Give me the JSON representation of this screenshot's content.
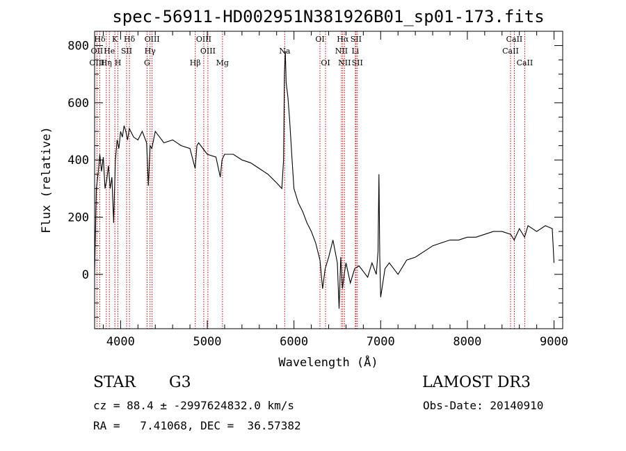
{
  "chart_data": {
    "type": "line",
    "title": "spec-56911-HD002951N381926B01_sp01-173.fits",
    "xlabel": "Wavelength (Å)",
    "ylabel": "Flux (relative)",
    "xlim": [
      3700,
      9100
    ],
    "ylim": [
      -190,
      850
    ],
    "x_ticks": [
      4000,
      5000,
      6000,
      7000,
      8000,
      9000
    ],
    "y_ticks": [
      0,
      200,
      400,
      600,
      800
    ],
    "grid": false,
    "series": [
      {
        "x": [
          3700,
          3720,
          3740,
          3760,
          3780,
          3800,
          3820,
          3840,
          3860,
          3880,
          3900,
          3920,
          3940,
          3960,
          3980,
          4000,
          4020,
          4040,
          4060,
          4080,
          4100,
          4150,
          4200,
          4250,
          4300,
          4320,
          4340,
          4360,
          4400,
          4450,
          4500,
          4600,
          4700,
          4800,
          4860,
          4880,
          4900,
          5000,
          5100,
          5150,
          5170,
          5200,
          5300,
          5400,
          5500,
          5600,
          5700,
          5800,
          5860,
          5880,
          5890,
          5900,
          5910,
          5930,
          5950,
          5980,
          6000,
          6050,
          6100,
          6150,
          6200,
          6250,
          6300,
          6330,
          6360,
          6400,
          6450,
          6500,
          6520,
          6540,
          6560,
          6580,
          6600,
          6650,
          6700,
          6750,
          6800,
          6850,
          6900,
          6950,
          6970,
          6980,
          6990,
          7000,
          7050,
          7100,
          7200,
          7300,
          7400,
          7500,
          7600,
          7700,
          7800,
          7900,
          8000,
          8100,
          8200,
          8300,
          8400,
          8500,
          8540,
          8600,
          8660,
          8700,
          8800,
          8900,
          8980,
          9000
        ],
        "values": [
          0,
          300,
          350,
          420,
          360,
          410,
          300,
          330,
          380,
          300,
          340,
          180,
          400,
          470,
          440,
          500,
          480,
          520,
          500,
          470,
          510,
          480,
          470,
          500,
          460,
          310,
          450,
          440,
          500,
          480,
          460,
          470,
          450,
          440,
          370,
          450,
          460,
          420,
          410,
          340,
          400,
          420,
          420,
          400,
          390,
          370,
          350,
          320,
          300,
          400,
          700,
          780,
          670,
          620,
          540,
          390,
          300,
          250,
          220,
          180,
          150,
          110,
          50,
          -50,
          20,
          60,
          120,
          40,
          -120,
          60,
          -50,
          0,
          40,
          -30,
          20,
          30,
          10,
          -10,
          40,
          0,
          80,
          350,
          60,
          -80,
          20,
          40,
          0,
          50,
          60,
          80,
          100,
          110,
          120,
          120,
          130,
          130,
          140,
          150,
          150,
          140,
          120,
          160,
          130,
          170,
          150,
          170,
          160,
          40
        ]
      }
    ],
    "spectral_lines": [
      {
        "label": "Hδ",
        "x": 3760,
        "row": 1
      },
      {
        "label": "OII",
        "x": 3727,
        "row": 2
      },
      {
        "label": "OIII",
        "x": 3727,
        "row": 3
      },
      {
        "label": "He",
        "x": 3870,
        "row": 2
      },
      {
        "label": "Hη",
        "x": 3835,
        "row": 3
      },
      {
        "label": "K",
        "x": 3934,
        "row": 1
      },
      {
        "label": "SII",
        "x": 4069,
        "row": 2
      },
      {
        "label": "H",
        "x": 3969,
        "row": 3
      },
      {
        "label": "Hδ",
        "x": 4102,
        "row": 1
      },
      {
        "label": "OIII",
        "x": 4363,
        "row": 1
      },
      {
        "label": "Hγ",
        "x": 4340,
        "row": 2
      },
      {
        "label": "G",
        "x": 4305,
        "row": 3
      },
      {
        "label": "OIII",
        "x": 4959,
        "row": 1
      },
      {
        "label": "OIII",
        "x": 5007,
        "row": 2
      },
      {
        "label": "Hβ",
        "x": 4861,
        "row": 3
      },
      {
        "label": "Mg",
        "x": 5175,
        "row": 3
      },
      {
        "label": "Na",
        "x": 5893,
        "row": 2
      },
      {
        "label": "OI",
        "x": 6300,
        "row": 1
      },
      {
        "label": "OI",
        "x": 6364,
        "row": 3
      },
      {
        "label": "Hα",
        "x": 6563,
        "row": 1
      },
      {
        "label": "SII",
        "x": 6716,
        "row": 1
      },
      {
        "label": "NII",
        "x": 6548,
        "row": 2
      },
      {
        "label": "Li",
        "x": 6708,
        "row": 2
      },
      {
        "label": "NII",
        "x": 6583,
        "row": 3
      },
      {
        "label": "SII",
        "x": 6731,
        "row": 3
      },
      {
        "label": "CaII",
        "x": 8542,
        "row": 1
      },
      {
        "label": "CaII",
        "x": 8498,
        "row": 2
      },
      {
        "label": "CaII",
        "x": 8662,
        "row": 3
      }
    ]
  },
  "info": {
    "class": "STAR",
    "subclass": "G3",
    "survey": "LAMOST DR3",
    "cz": "cz = 88.4 ± -2997624832.0 km/s",
    "obs_date": "Obs-Date: 20140910",
    "radec": "RA =   7.41068, DEC =  36.57382"
  },
  "colors": {
    "line": "#000000",
    "marker": "#cc0000",
    "background": "#ffffff"
  }
}
